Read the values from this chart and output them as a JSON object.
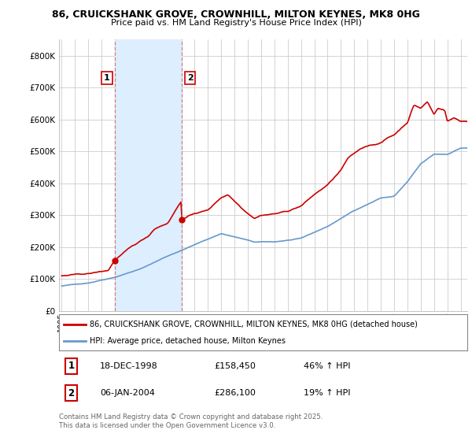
{
  "title1": "86, CRUICKSHANK GROVE, CROWNHILL, MILTON KEYNES, MK8 0HG",
  "title2": "Price paid vs. HM Land Registry's House Price Index (HPI)",
  "red_label": "86, CRUICKSHANK GROVE, CROWNHILL, MILTON KEYNES, MK8 0HG (detached house)",
  "blue_label": "HPI: Average price, detached house, Milton Keynes",
  "marker1_date": "18-DEC-1998",
  "marker1_price": 158450,
  "marker1_hpi": "46% ↑ HPI",
  "marker2_date": "06-JAN-2004",
  "marker2_price": 286100,
  "marker2_hpi": "19% ↑ HPI",
  "footnote": "Contains HM Land Registry data © Crown copyright and database right 2025.\nThis data is licensed under the Open Government Licence v3.0.",
  "red_color": "#cc0000",
  "blue_color": "#6699cc",
  "shade_color": "#ddeeff",
  "background_color": "#ffffff",
  "grid_color": "#cccccc",
  "ylim": [
    0,
    850000
  ],
  "yticks": [
    0,
    100000,
    200000,
    300000,
    400000,
    500000,
    600000,
    700000,
    800000
  ],
  "ytick_labels": [
    "£0",
    "£100K",
    "£200K",
    "£300K",
    "£400K",
    "£500K",
    "£600K",
    "£700K",
    "£800K"
  ],
  "vline1_x": 1999.0,
  "vline2_x": 2004.05,
  "marker1_x": 1999.0,
  "marker1_y": 158450,
  "marker2_x": 2004.05,
  "marker2_y": 286100,
  "xlim_left": 1994.8,
  "xlim_right": 2025.5
}
